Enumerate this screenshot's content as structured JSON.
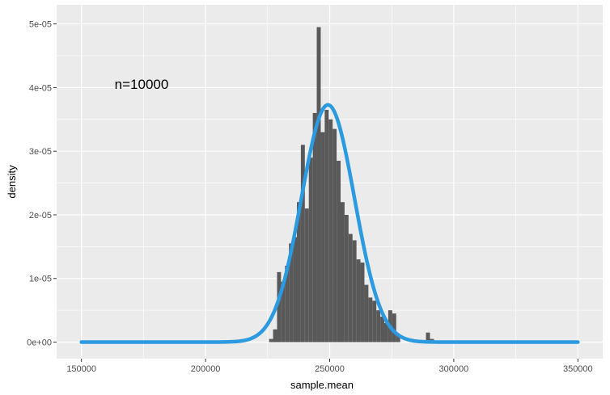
{
  "chart_data": {
    "type": "bar",
    "xlabel": "sample.mean",
    "ylabel": "density",
    "annotation": "n=10000",
    "xlim": [
      140000,
      360000
    ],
    "ylim": [
      -2.6e-06,
      5.3e-05
    ],
    "x_ticks": [
      150000,
      200000,
      250000,
      300000,
      350000
    ],
    "x_tick_labels": [
      "150000",
      "200000",
      "250000",
      "300000",
      "350000"
    ],
    "y_ticks": [
      0,
      1e-05,
      2e-05,
      3e-05,
      4e-05,
      5e-05
    ],
    "y_tick_labels": [
      "0e+00",
      "1e-05",
      "2e-05",
      "3e-05",
      "4e-05",
      "5e-05"
    ],
    "grid": true,
    "colors": {
      "panel": "#ebebeb",
      "grid": "#ffffff",
      "bars": "#595959",
      "curve": "#2b9ae0"
    },
    "histogram": {
      "binwidth": 1600,
      "bins": [
        {
          "x": 226400,
          "y": 5e-07
        },
        {
          "x": 228000,
          "y": 2e-06
        },
        {
          "x": 229600,
          "y": 1.1e-05
        },
        {
          "x": 231200,
          "y": 9.5e-06
        },
        {
          "x": 232800,
          "y": 1.2e-05
        },
        {
          "x": 234400,
          "y": 1.55e-05
        },
        {
          "x": 236000,
          "y": 1.65e-05
        },
        {
          "x": 237600,
          "y": 2.2e-05
        },
        {
          "x": 239200,
          "y": 3.1e-05
        },
        {
          "x": 240800,
          "y": 2.1e-05
        },
        {
          "x": 242400,
          "y": 2.9e-05
        },
        {
          "x": 244000,
          "y": 3.6e-05
        },
        {
          "x": 245600,
          "y": 4.95e-05
        },
        {
          "x": 247200,
          "y": 3.3e-05
        },
        {
          "x": 248800,
          "y": 3.65e-05
        },
        {
          "x": 250400,
          "y": 3.5e-05
        },
        {
          "x": 252000,
          "y": 3.35e-05
        },
        {
          "x": 253600,
          "y": 2.85e-05
        },
        {
          "x": 255200,
          "y": 2.2e-05
        },
        {
          "x": 256800,
          "y": 2e-05
        },
        {
          "x": 258400,
          "y": 1.7e-05
        },
        {
          "x": 260000,
          "y": 1.6e-05
        },
        {
          "x": 261600,
          "y": 1.3e-05
        },
        {
          "x": 263200,
          "y": 1.25e-05
        },
        {
          "x": 264800,
          "y": 9e-06
        },
        {
          "x": 266400,
          "y": 7e-06
        },
        {
          "x": 268000,
          "y": 6.5e-06
        },
        {
          "x": 269600,
          "y": 5e-06
        },
        {
          "x": 271200,
          "y": 4e-06
        },
        {
          "x": 272800,
          "y": 3e-06
        },
        {
          "x": 274400,
          "y": 5e-06
        },
        {
          "x": 276000,
          "y": 4.5e-06
        },
        {
          "x": 277600,
          "y": 1e-06
        },
        {
          "x": 289600,
          "y": 1.5e-06
        },
        {
          "x": 291200,
          "y": 5e-07
        }
      ]
    },
    "normal_curve": {
      "mean": 249300,
      "sd": 10700,
      "x_range": [
        150000,
        350000
      ]
    }
  }
}
